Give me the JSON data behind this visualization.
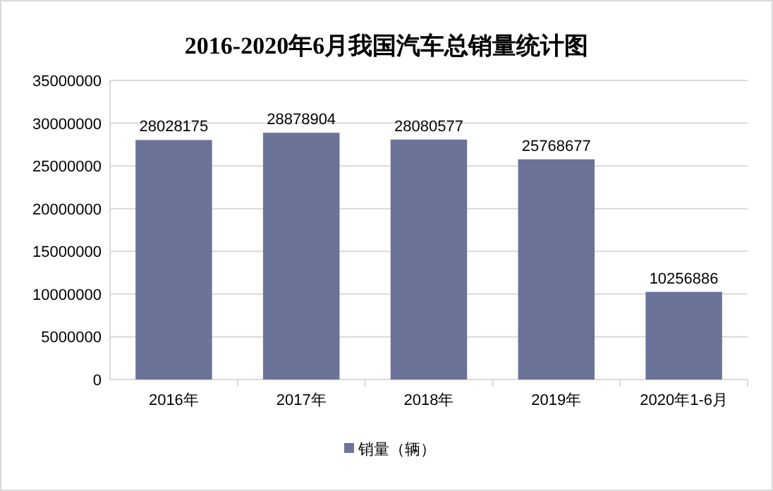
{
  "chart_data": {
    "type": "bar",
    "title": "2016-2020年6月我国汽车总销量统计图",
    "categories": [
      "2016年",
      "2017年",
      "2018年",
      "2019年",
      "2020年1-6月"
    ],
    "series": [
      {
        "name": "销量（辆）",
        "color": "#6b7398",
        "values": [
          28028175,
          28878904,
          28080577,
          25768677,
          10256886
        ]
      }
    ],
    "ylim": [
      0,
      35000000
    ],
    "yticks": [
      0,
      5000000,
      10000000,
      15000000,
      20000000,
      25000000,
      30000000,
      35000000
    ],
    "grid": "y",
    "legend": "bottom",
    "data_labels": true
  }
}
